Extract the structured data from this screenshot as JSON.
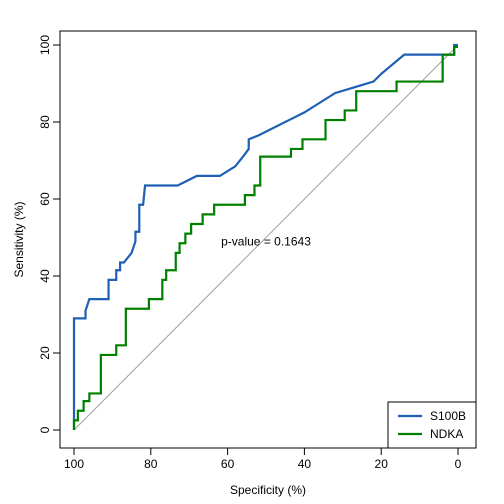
{
  "chart_data": {
    "type": "line",
    "title": "",
    "xlabel": "Specificity (%)",
    "ylabel": "Sensitivity (%)",
    "xlim": [
      100,
      0
    ],
    "ylim": [
      0,
      100
    ],
    "x_reversed": true,
    "x_ticks": [
      100,
      80,
      60,
      40,
      20,
      0
    ],
    "y_ticks": [
      0,
      20,
      40,
      60,
      80,
      100
    ],
    "grid": false,
    "legend_position": "bottom-right",
    "annotation": {
      "text": "p-value = 0.1643",
      "x": 50,
      "y": 49
    },
    "reference_line": {
      "from": [
        100,
        0
      ],
      "to": [
        0,
        100
      ],
      "color": "#a0a0a0"
    },
    "series": [
      {
        "name": "S100B",
        "color": "#1f5fb4",
        "points": [
          [
            100,
            0
          ],
          [
            100,
            29
          ],
          [
            97,
            29
          ],
          [
            97,
            31
          ],
          [
            96,
            34
          ],
          [
            91,
            34
          ],
          [
            91,
            39
          ],
          [
            89,
            39
          ],
          [
            89,
            41.5
          ],
          [
            88,
            41.5
          ],
          [
            88,
            43.5
          ],
          [
            87,
            43.5
          ],
          [
            85,
            46
          ],
          [
            84,
            49
          ],
          [
            84,
            51.5
          ],
          [
            83,
            51.5
          ],
          [
            83,
            58.5
          ],
          [
            82,
            58.5
          ],
          [
            81.5,
            63.5
          ],
          [
            73,
            63.5
          ],
          [
            68,
            66
          ],
          [
            62,
            66
          ],
          [
            58,
            68.5
          ],
          [
            56,
            71
          ],
          [
            54.5,
            73
          ],
          [
            54.5,
            75.5
          ],
          [
            52,
            76.5
          ],
          [
            48,
            78.5
          ],
          [
            44,
            80.5
          ],
          [
            40,
            82.5
          ],
          [
            36,
            85
          ],
          [
            32,
            87.5
          ],
          [
            27,
            89
          ],
          [
            22,
            90.5
          ],
          [
            20,
            92.5
          ],
          [
            14,
            97.5
          ],
          [
            1,
            97.5
          ],
          [
            1,
            100
          ],
          [
            0,
            100
          ]
        ]
      },
      {
        "name": "NDKA",
        "color": "#008000",
        "points": [
          [
            100,
            0
          ],
          [
            100,
            2.5
          ],
          [
            99,
            2.5
          ],
          [
            99,
            5
          ],
          [
            97.5,
            5
          ],
          [
            97.5,
            7.5
          ],
          [
            96,
            7.5
          ],
          [
            96,
            9.5
          ],
          [
            93,
            9.5
          ],
          [
            93,
            19.5
          ],
          [
            89,
            19.5
          ],
          [
            89,
            22
          ],
          [
            86.5,
            22
          ],
          [
            86.5,
            31.5
          ],
          [
            80.5,
            31.5
          ],
          [
            80.5,
            34
          ],
          [
            77,
            34
          ],
          [
            77,
            39
          ],
          [
            76,
            39
          ],
          [
            76,
            41.5
          ],
          [
            73.5,
            41.5
          ],
          [
            73.5,
            46
          ],
          [
            72.5,
            46
          ],
          [
            72.5,
            48.5
          ],
          [
            71,
            48.5
          ],
          [
            71,
            51
          ],
          [
            69.5,
            51
          ],
          [
            69.5,
            53.5
          ],
          [
            66.5,
            53.5
          ],
          [
            66.5,
            56
          ],
          [
            63.5,
            56
          ],
          [
            63.5,
            58.5
          ],
          [
            55.5,
            58.5
          ],
          [
            55.5,
            61
          ],
          [
            53,
            61
          ],
          [
            53,
            63.5
          ],
          [
            51.5,
            63.5
          ],
          [
            51.5,
            71
          ],
          [
            43.5,
            71
          ],
          [
            43.5,
            73
          ],
          [
            40.5,
            73
          ],
          [
            40.5,
            75.5
          ],
          [
            34.5,
            75.5
          ],
          [
            34.5,
            80.5
          ],
          [
            29.5,
            80.5
          ],
          [
            29.5,
            83
          ],
          [
            26.5,
            83
          ],
          [
            26.5,
            88
          ],
          [
            16,
            88
          ],
          [
            16,
            90.5
          ],
          [
            4,
            90.5
          ],
          [
            4,
            97.5
          ],
          [
            1,
            97.5
          ],
          [
            1,
            99.5
          ],
          [
            0,
            99.5
          ]
        ]
      }
    ]
  }
}
